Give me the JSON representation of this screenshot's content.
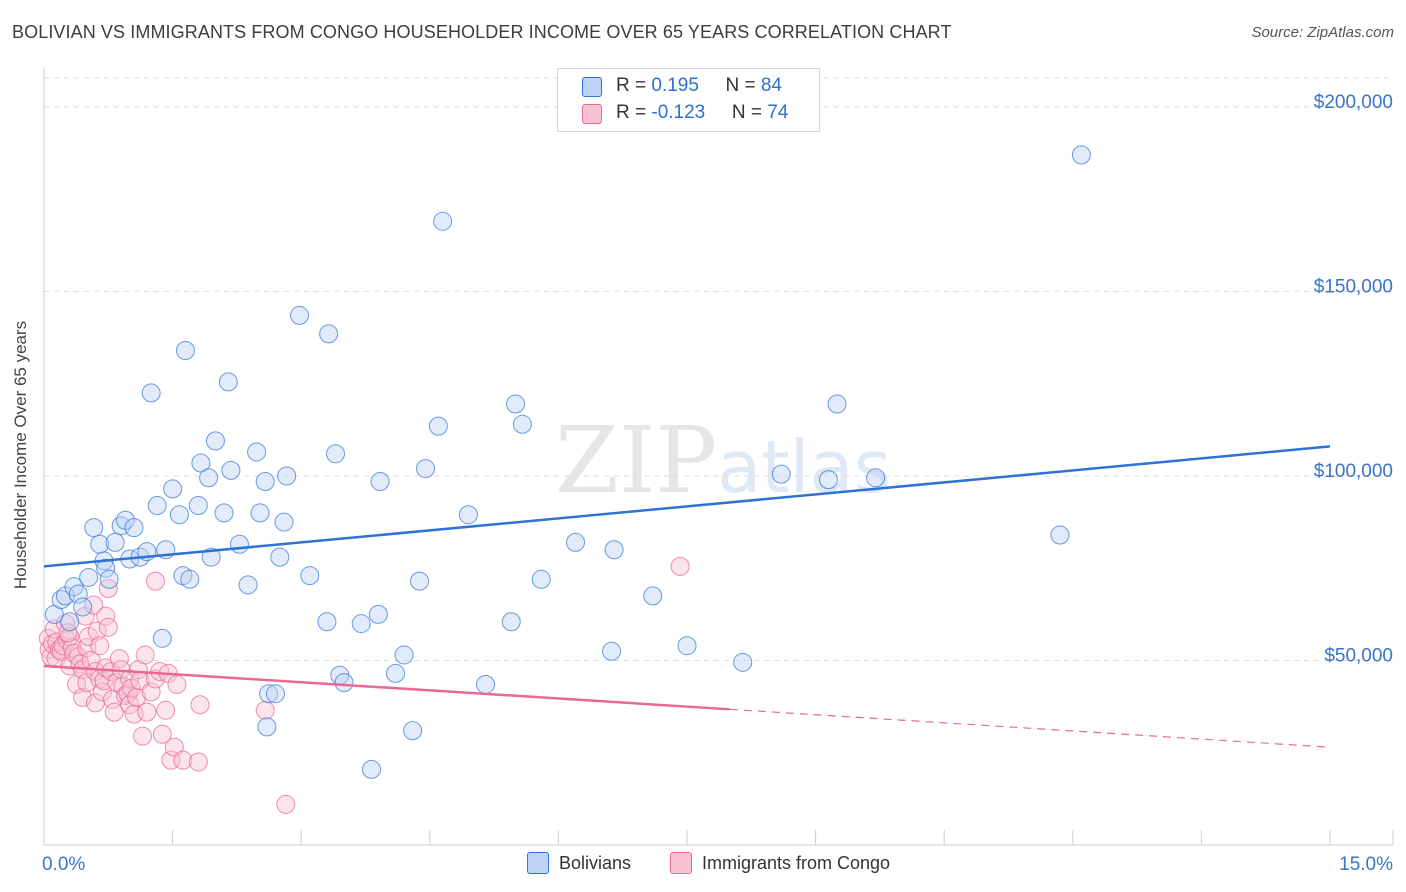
{
  "header": {
    "title": "BOLIVIAN VS IMMIGRANTS FROM CONGO HOUSEHOLDER INCOME OVER 65 YEARS CORRELATION CHART",
    "source": "Source: ZipAtlas.com"
  },
  "watermark": "ZIPatlas",
  "colors": {
    "bolivians": "#2f72d6",
    "bolivians_fill": "#bcd3f3",
    "congo": "#e86a94",
    "congo_fill": "#f7c3d4",
    "axis_label": "#3a73c8",
    "grid": "#dcdcdc"
  },
  "legend_top": {
    "rows": [
      {
        "r_label": "R = ",
        "r_value": "0.195",
        "n_label": "N = ",
        "n_value": "84"
      },
      {
        "r_label": "R = ",
        "r_value": "-0.123",
        "n_label": "N = ",
        "n_value": "74"
      }
    ]
  },
  "chart_data": {
    "type": "scatter",
    "title": "BOLIVIAN VS IMMIGRANTS FROM CONGO HOUSEHOLDER INCOME OVER 65 YEARS CORRELATION CHART",
    "xlabel": "",
    "ylabel": "Householder Income Over 65 years",
    "xlim": [
      0,
      15
    ],
    "ylim": [
      0,
      210000
    ],
    "x_tick_labels": {
      "left": "0.0%",
      "right": "15.0%"
    },
    "y_ticks": [
      {
        "value": 50000,
        "label": "$50,000"
      },
      {
        "value": 100000,
        "label": "$100,000"
      },
      {
        "value": 150000,
        "label": "$150,000"
      },
      {
        "value": 200000,
        "label": "$200,000"
      }
    ],
    "grid": true,
    "legend_position": "bottom",
    "series": [
      {
        "name": "Bolivians",
        "r": 0.195,
        "n": 84,
        "trend": {
          "x": [
            0,
            15
          ],
          "y": [
            75500,
            108000
          ],
          "dashed_from": null
        },
        "points": [
          [
            0.12,
            62500
          ],
          [
            0.2,
            66500
          ],
          [
            0.3,
            60500
          ],
          [
            0.25,
            67500
          ],
          [
            0.35,
            70000
          ],
          [
            0.4,
            68000
          ],
          [
            0.45,
            64500
          ],
          [
            0.52,
            72500
          ],
          [
            0.58,
            86000
          ],
          [
            0.65,
            81500
          ],
          [
            0.7,
            77000
          ],
          [
            0.72,
            75000
          ],
          [
            0.76,
            72000
          ],
          [
            0.83,
            82000
          ],
          [
            0.9,
            86500
          ],
          [
            0.95,
            88000
          ],
          [
            1.0,
            77500
          ],
          [
            1.05,
            86000
          ],
          [
            1.12,
            78000
          ],
          [
            1.2,
            79500
          ],
          [
            1.25,
            122500
          ],
          [
            1.32,
            92000
          ],
          [
            1.38,
            56000
          ],
          [
            1.42,
            80000
          ],
          [
            1.5,
            96500
          ],
          [
            1.58,
            89500
          ],
          [
            1.62,
            73000
          ],
          [
            1.65,
            134000
          ],
          [
            1.7,
            72000
          ],
          [
            1.8,
            92000
          ],
          [
            1.83,
            103500
          ],
          [
            1.92,
            99500
          ],
          [
            1.95,
            78000
          ],
          [
            2.0,
            109500
          ],
          [
            2.1,
            90000
          ],
          [
            2.15,
            125500
          ],
          [
            2.18,
            101500
          ],
          [
            2.28,
            81500
          ],
          [
            2.38,
            70500
          ],
          [
            2.48,
            106500
          ],
          [
            2.52,
            90000
          ],
          [
            2.58,
            98500
          ],
          [
            2.62,
            41000
          ],
          [
            2.7,
            41000
          ],
          [
            2.6,
            32000
          ],
          [
            2.8,
            87500
          ],
          [
            2.83,
            100000
          ],
          [
            2.75,
            78000
          ],
          [
            2.98,
            143500
          ],
          [
            3.1,
            73000
          ],
          [
            3.3,
            60500
          ],
          [
            3.32,
            138500
          ],
          [
            3.4,
            106000
          ],
          [
            3.45,
            46000
          ],
          [
            3.5,
            44000
          ],
          [
            3.7,
            60000
          ],
          [
            3.82,
            20500
          ],
          [
            3.9,
            62500
          ],
          [
            3.92,
            98500
          ],
          [
            4.1,
            46500
          ],
          [
            4.2,
            51500
          ],
          [
            4.3,
            31000
          ],
          [
            4.38,
            71500
          ],
          [
            4.45,
            102000
          ],
          [
            4.6,
            113500
          ],
          [
            4.65,
            169000
          ],
          [
            4.95,
            89500
          ],
          [
            5.15,
            43500
          ],
          [
            5.45,
            60500
          ],
          [
            5.5,
            119500
          ],
          [
            5.58,
            114000
          ],
          [
            5.8,
            72000
          ],
          [
            6.2,
            82000
          ],
          [
            6.62,
            52500
          ],
          [
            6.65,
            80000
          ],
          [
            7.1,
            67500
          ],
          [
            7.5,
            54000
          ],
          [
            8.15,
            49500
          ],
          [
            8.6,
            100500
          ],
          [
            9.15,
            99000
          ],
          [
            9.25,
            119500
          ],
          [
            9.7,
            99500
          ],
          [
            11.85,
            84000
          ],
          [
            12.1,
            187000
          ]
        ]
      },
      {
        "name": "Immigrants from Congo",
        "r": -0.123,
        "n": 74,
        "trend": {
          "x": [
            0,
            15
          ],
          "y": [
            48500,
            26500
          ],
          "dashed_from": 8.0
        },
        "points": [
          [
            0.05,
            56000
          ],
          [
            0.06,
            53000
          ],
          [
            0.08,
            51000
          ],
          [
            0.1,
            54500
          ],
          [
            0.12,
            58500
          ],
          [
            0.14,
            50500
          ],
          [
            0.15,
            55000
          ],
          [
            0.18,
            53000
          ],
          [
            0.2,
            52500
          ],
          [
            0.22,
            54000
          ],
          [
            0.25,
            60000
          ],
          [
            0.27,
            55500
          ],
          [
            0.3,
            48500
          ],
          [
            0.3,
            56500
          ],
          [
            0.33,
            53500
          ],
          [
            0.35,
            52000
          ],
          [
            0.38,
            43500
          ],
          [
            0.4,
            51000
          ],
          [
            0.42,
            49000
          ],
          [
            0.45,
            47500
          ],
          [
            0.45,
            40000
          ],
          [
            0.48,
            62000
          ],
          [
            0.5,
            44000
          ],
          [
            0.5,
            53500
          ],
          [
            0.52,
            56500
          ],
          [
            0.55,
            50000
          ],
          [
            0.58,
            65000
          ],
          [
            0.6,
            47000
          ],
          [
            0.6,
            38500
          ],
          [
            0.62,
            58000
          ],
          [
            0.65,
            45000
          ],
          [
            0.65,
            54000
          ],
          [
            0.68,
            41500
          ],
          [
            0.7,
            44500
          ],
          [
            0.72,
            48000
          ],
          [
            0.72,
            62000
          ],
          [
            0.75,
            59000
          ],
          [
            0.75,
            69500
          ],
          [
            0.78,
            47000
          ],
          [
            0.8,
            39500
          ],
          [
            0.82,
            36000
          ],
          [
            0.85,
            44000
          ],
          [
            0.88,
            50500
          ],
          [
            0.9,
            47500
          ],
          [
            0.92,
            43000
          ],
          [
            0.95,
            40500
          ],
          [
            0.98,
            41000
          ],
          [
            1.0,
            45000
          ],
          [
            1.0,
            38000
          ],
          [
            1.02,
            42500
          ],
          [
            1.05,
            35500
          ],
          [
            1.08,
            40000
          ],
          [
            1.1,
            47500
          ],
          [
            1.12,
            44500
          ],
          [
            1.15,
            29500
          ],
          [
            1.18,
            51500
          ],
          [
            1.2,
            36000
          ],
          [
            1.25,
            41500
          ],
          [
            1.3,
            45000
          ],
          [
            1.3,
            71500
          ],
          [
            1.35,
            47000
          ],
          [
            1.38,
            30000
          ],
          [
            1.42,
            36500
          ],
          [
            1.45,
            46500
          ],
          [
            1.48,
            23000
          ],
          [
            1.52,
            26500
          ],
          [
            1.55,
            43500
          ],
          [
            1.62,
            23000
          ],
          [
            1.8,
            22500
          ],
          [
            1.82,
            38000
          ],
          [
            2.58,
            36500
          ],
          [
            2.82,
            11000
          ],
          [
            7.42,
            75500
          ],
          [
            0.28,
            57500
          ]
        ]
      }
    ]
  }
}
